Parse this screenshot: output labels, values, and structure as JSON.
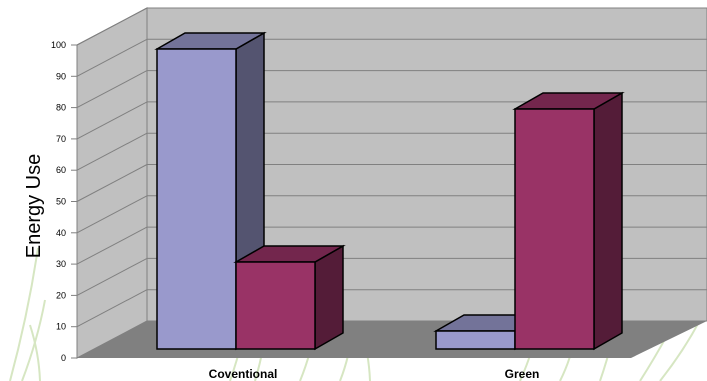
{
  "chart_data": {
    "type": "bar",
    "title": "",
    "xlabel": "",
    "ylabel": "Energy Use",
    "ylim": [
      0,
      100
    ],
    "y_ticks": [
      0,
      10,
      20,
      30,
      40,
      50,
      60,
      70,
      80,
      90,
      100
    ],
    "categories": [
      "Coventional",
      "Green"
    ],
    "series": [
      {
        "values": [
          100,
          6
        ],
        "color": "#9999cc"
      },
      {
        "values": [
          29,
          80
        ],
        "color": "#993366"
      }
    ],
    "grid": true,
    "legend": "none",
    "style": "3d-clustered-column",
    "wall_color": "#c0c0c0",
    "floor_color": "#808080"
  }
}
